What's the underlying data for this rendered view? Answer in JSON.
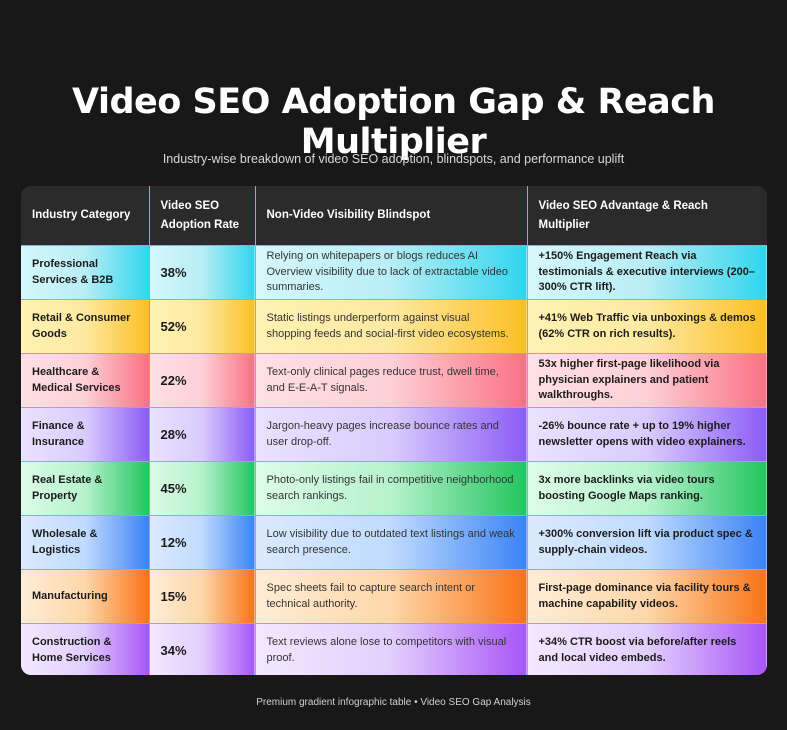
{
  "title": "Video SEO Adoption Gap & Reach Multiplier",
  "subtitle": "Industry-wise breakdown of video SEO adoption, blindspots, and performance uplift",
  "table": {
    "headers": [
      "Industry Category",
      "Video SEO Adoption Rate",
      "Non-Video Visibility Blindspot",
      "Video SEO Advantage & Reach Multiplier"
    ],
    "rows": [
      {
        "industry": "Professional Services & B2B",
        "rate": "38%",
        "blindspot": "Relying on whitepapers or blogs reduces AI Overview visibility due to lack of extractable video summaries.",
        "advantage": "+150% Engagement Reach via testimonials & executive interviews (200–300% CTR lift)."
      },
      {
        "industry": "Retail & Consumer Goods",
        "rate": "52%",
        "blindspot": "Static listings underperform against visual shopping feeds and social-first video ecosystems.",
        "advantage": "+41% Web Traffic via unboxings & demos (62% CTR on rich results)."
      },
      {
        "industry": "Healthcare & Medical Services",
        "rate": "22%",
        "blindspot": "Text-only clinical pages reduce trust, dwell time, and E-E-A-T signals.",
        "advantage": "53x higher first-page likelihood via physician explainers and patient walkthroughs."
      },
      {
        "industry": "Finance & Insurance",
        "rate": "28%",
        "blindspot": "Jargon-heavy pages increase bounce rates and user drop-off.",
        "advantage": "-26% bounce rate + up to 19% higher newsletter opens with video explainers."
      },
      {
        "industry": "Real Estate & Property",
        "rate": "45%",
        "blindspot": "Photo-only listings fail in competitive neighborhood search rankings.",
        "advantage": "3x more backlinks via video tours boosting Google Maps ranking."
      },
      {
        "industry": "Wholesale & Logistics",
        "rate": "12%",
        "blindspot": "Low visibility due to outdated text listings and weak search presence.",
        "advantage": "+300% conversion lift via product spec & supply-chain videos."
      },
      {
        "industry": "Manufacturing",
        "rate": "15%",
        "blindspot": "Spec sheets fail to capture search intent or technical authority.",
        "advantage": "First-page dominance via facility tours & machine capability videos."
      },
      {
        "industry": "Construction & Home Services",
        "rate": "34%",
        "blindspot": "Text reviews alone lose to competitors with visual proof.",
        "advantage": "+34% CTR boost via before/after reels and local video embeds."
      }
    ]
  },
  "footer": "Premium gradient infographic table • Video SEO Gap Analysis",
  "colors": {
    "background": "#181818",
    "header": "#2b2b2b",
    "grid": "#3ad7d7",
    "row_accents": [
      "#2fd6ee",
      "#fbbf24",
      "#fb7185",
      "#8b5cf6",
      "#22c55e",
      "#3b82f6",
      "#f97316",
      "#a855f7"
    ]
  }
}
